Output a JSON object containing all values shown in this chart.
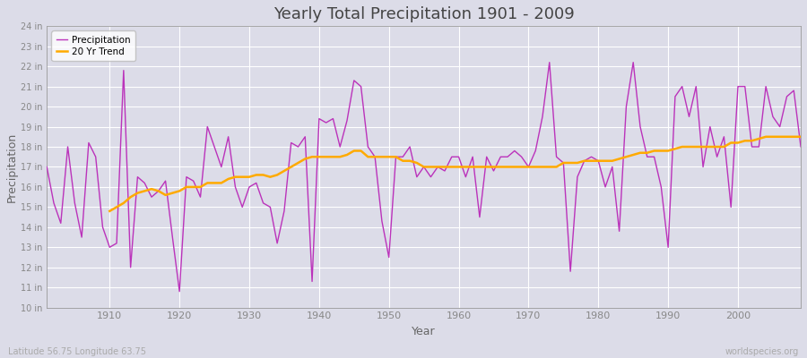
{
  "title": "Yearly Total Precipitation 1901 - 2009",
  "xlabel": "Year",
  "ylabel": "Precipitation",
  "lat_lon_label": "Latitude 56.75 Longitude 63.75",
  "worldspecies_label": "worldspecies.org",
  "bg_color": "#dcdce8",
  "axes_bg_color": "#dcdce8",
  "grid_color": "#ffffff",
  "precip_color": "#bb33bb",
  "trend_color": "#ffaa00",
  "ylim_min": 10,
  "ylim_max": 24,
  "title_color": "#444444",
  "label_color": "#666666",
  "tick_color": "#888888",
  "years": [
    1901,
    1902,
    1903,
    1904,
    1905,
    1906,
    1907,
    1908,
    1909,
    1910,
    1911,
    1912,
    1913,
    1914,
    1915,
    1916,
    1917,
    1918,
    1919,
    1920,
    1921,
    1922,
    1923,
    1924,
    1925,
    1926,
    1927,
    1928,
    1929,
    1930,
    1931,
    1932,
    1933,
    1934,
    1935,
    1936,
    1937,
    1938,
    1939,
    1940,
    1941,
    1942,
    1943,
    1944,
    1945,
    1946,
    1947,
    1948,
    1949,
    1950,
    1951,
    1952,
    1953,
    1954,
    1955,
    1956,
    1957,
    1958,
    1959,
    1960,
    1961,
    1962,
    1963,
    1964,
    1965,
    1966,
    1967,
    1968,
    1969,
    1970,
    1971,
    1972,
    1973,
    1974,
    1975,
    1976,
    1977,
    1978,
    1979,
    1980,
    1981,
    1982,
    1983,
    1984,
    1985,
    1986,
    1987,
    1988,
    1989,
    1990,
    1991,
    1992,
    1993,
    1994,
    1995,
    1996,
    1997,
    1998,
    1999,
    2000,
    2001,
    2002,
    2003,
    2004,
    2005,
    2006,
    2007,
    2008,
    2009
  ],
  "precip": [
    17.0,
    15.2,
    14.2,
    18.0,
    15.2,
    13.5,
    18.2,
    17.5,
    14.0,
    13.0,
    13.2,
    21.8,
    12.0,
    16.5,
    16.2,
    15.5,
    15.8,
    16.3,
    13.5,
    10.8,
    16.5,
    16.3,
    15.5,
    19.0,
    18.0,
    17.0,
    18.5,
    16.0,
    15.0,
    16.0,
    16.2,
    15.2,
    15.0,
    13.2,
    14.8,
    18.2,
    18.0,
    18.5,
    11.3,
    19.4,
    19.2,
    19.4,
    18.0,
    19.3,
    21.3,
    21.0,
    18.0,
    17.5,
    14.3,
    12.5,
    17.5,
    17.5,
    18.0,
    16.5,
    17.0,
    16.5,
    17.0,
    16.8,
    17.5,
    17.5,
    16.5,
    17.5,
    14.5,
    17.5,
    16.8,
    17.5,
    17.5,
    17.8,
    17.5,
    17.0,
    17.8,
    19.5,
    22.2,
    17.5,
    17.2,
    11.8,
    16.5,
    17.3,
    17.5,
    17.3,
    16.0,
    17.0,
    13.8,
    20.0,
    22.2,
    19.0,
    17.5,
    17.5,
    16.0,
    13.0,
    20.5,
    21.0,
    19.5,
    21.0,
    17.0,
    19.0,
    17.5,
    18.5,
    15.0,
    21.0,
    21.0,
    18.0,
    18.0,
    21.0,
    19.5,
    19.0,
    20.5,
    20.8,
    18.0
  ],
  "trend": [
    null,
    null,
    null,
    null,
    null,
    null,
    null,
    null,
    null,
    14.8,
    15.0,
    15.2,
    15.5,
    15.7,
    15.8,
    15.9,
    15.8,
    15.6,
    15.7,
    15.8,
    16.0,
    16.0,
    16.0,
    16.2,
    16.2,
    16.2,
    16.4,
    16.5,
    16.5,
    16.5,
    16.6,
    16.6,
    16.5,
    16.6,
    16.8,
    17.0,
    17.2,
    17.4,
    17.5,
    17.5,
    17.5,
    17.5,
    17.5,
    17.6,
    17.8,
    17.8,
    17.5,
    17.5,
    17.5,
    17.5,
    17.5,
    17.3,
    17.3,
    17.2,
    17.0,
    17.0,
    17.0,
    17.0,
    17.0,
    17.0,
    17.0,
    17.0,
    17.0,
    17.0,
    17.0,
    17.0,
    17.0,
    17.0,
    17.0,
    17.0,
    17.0,
    17.0,
    17.0,
    17.0,
    17.2,
    17.2,
    17.2,
    17.3,
    17.3,
    17.3,
    17.3,
    17.3,
    17.4,
    17.5,
    17.6,
    17.7,
    17.7,
    17.8,
    17.8,
    17.8,
    17.9,
    18.0,
    18.0,
    18.0,
    18.0,
    18.0,
    18.0,
    18.0,
    18.2,
    18.2,
    18.3,
    18.3,
    18.4,
    18.5,
    18.5,
    18.5,
    18.5,
    18.5,
    18.5
  ]
}
